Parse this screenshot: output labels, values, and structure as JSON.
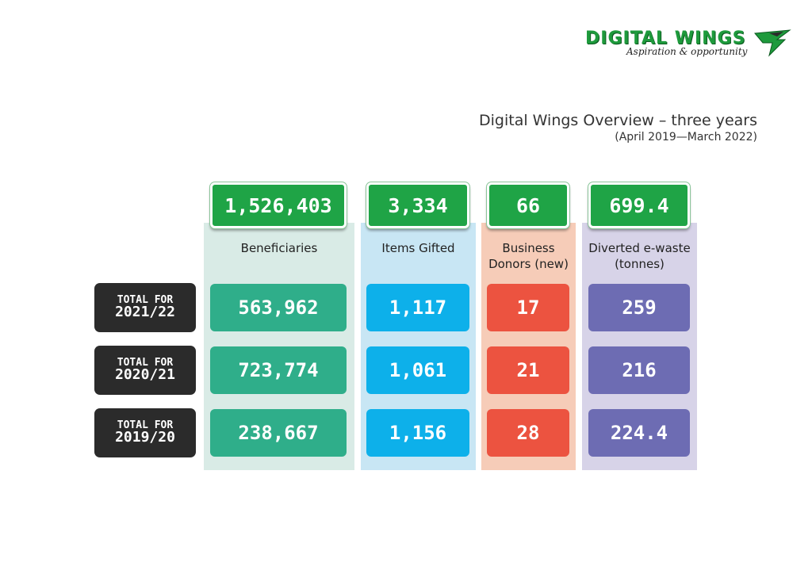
{
  "brand": {
    "name": "DIGITAL WINGS",
    "tagline": "Aspiration & opportunity",
    "color": "#1e9a3c"
  },
  "title": {
    "main": "Digital Wings Overview – three years",
    "period": "(April 2019—March 2022)"
  },
  "columns": [
    {
      "label": "Beneficiaries",
      "total": "1,526,403",
      "color": "#2fae8a",
      "bg": "#d9ebe6"
    },
    {
      "label": "Items Gifted",
      "total": "3,334",
      "color": "#0db0ea",
      "bg": "#c8e6f4"
    },
    {
      "label": "Business Donors (new)",
      "total": "66",
      "color": "#ec5340",
      "bg": "#f6ccb8"
    },
    {
      "label": "Diverted e-waste (tonnes)",
      "total": "699.4",
      "color": "#6d6cb3",
      "bg": "#d7d3e8"
    }
  ],
  "rows": [
    {
      "prefix": "TOTAL FOR",
      "year": "2021/22",
      "values": [
        "563,962",
        "1,117",
        "17",
        "259"
      ]
    },
    {
      "prefix": "TOTAL FOR",
      "year": "2020/21",
      "values": [
        "723,774",
        "1,061",
        "21",
        "216"
      ]
    },
    {
      "prefix": "TOTAL FOR",
      "year": "2019/20",
      "values": [
        "238,667",
        "1,156",
        "28",
        "224.4"
      ]
    }
  ],
  "total_color": "#1fa446"
}
